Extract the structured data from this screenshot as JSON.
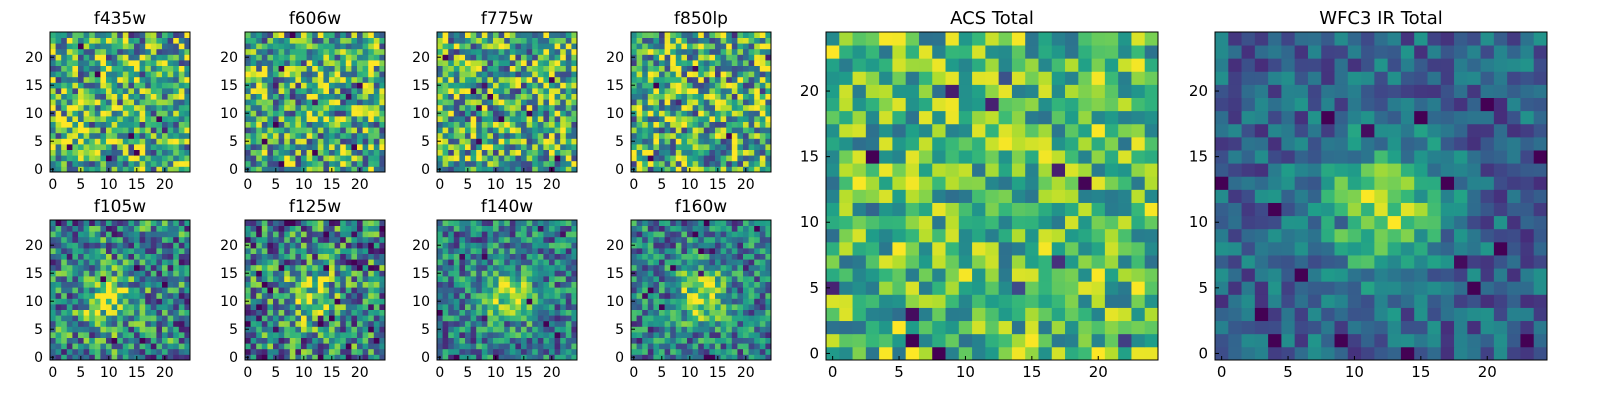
{
  "chart_data": [
    {
      "type": "heatmap",
      "title": "f435w",
      "xlim": [
        0,
        25
      ],
      "ylim": [
        0,
        25
      ],
      "xticks": [
        0,
        5,
        10,
        15,
        20
      ],
      "yticks": [
        0,
        5,
        10,
        15,
        20
      ],
      "grid_size": [
        25,
        25
      ],
      "colormap": "viridis",
      "grid": false,
      "pattern": {
        "kind": "noise",
        "center": null,
        "peak": 0,
        "noise": 0.45,
        "base": 0.62,
        "seed": 11
      }
    },
    {
      "type": "heatmap",
      "title": "f606w",
      "xlim": [
        0,
        25
      ],
      "ylim": [
        0,
        25
      ],
      "xticks": [
        0,
        5,
        10,
        15,
        20
      ],
      "yticks": [
        0,
        5,
        10,
        15,
        20
      ],
      "grid_size": [
        25,
        25
      ],
      "colormap": "viridis",
      "grid": false,
      "pattern": {
        "kind": "noise",
        "center": null,
        "peak": 0,
        "noise": 0.45,
        "base": 0.62,
        "seed": 23
      }
    },
    {
      "type": "heatmap",
      "title": "f775w",
      "xlim": [
        0,
        25
      ],
      "ylim": [
        0,
        25
      ],
      "xticks": [
        0,
        5,
        10,
        15,
        20
      ],
      "yticks": [
        0,
        5,
        10,
        15,
        20
      ],
      "grid_size": [
        25,
        25
      ],
      "colormap": "viridis",
      "grid": false,
      "pattern": {
        "kind": "noise",
        "center": null,
        "peak": 0,
        "noise": 0.45,
        "base": 0.62,
        "seed": 37
      }
    },
    {
      "type": "heatmap",
      "title": "f850lp",
      "xlim": [
        0,
        25
      ],
      "ylim": [
        0,
        25
      ],
      "xticks": [
        0,
        5,
        10,
        15,
        20
      ],
      "yticks": [
        0,
        5,
        10,
        15,
        20
      ],
      "grid_size": [
        25,
        25
      ],
      "colormap": "viridis",
      "grid": false,
      "pattern": {
        "kind": "noise",
        "center": null,
        "peak": 0,
        "noise": 0.45,
        "base": 0.62,
        "seed": 41
      }
    },
    {
      "type": "heatmap",
      "title": "f105w",
      "xlim": [
        0,
        25
      ],
      "ylim": [
        0,
        25
      ],
      "xticks": [
        0,
        5,
        10,
        15,
        20
      ],
      "yticks": [
        0,
        5,
        10,
        15,
        20
      ],
      "grid_size": [
        25,
        25
      ],
      "colormap": "viridis",
      "grid": false,
      "pattern": {
        "kind": "source",
        "center": [
          10,
          10
        ],
        "peak": 0.45,
        "noise": 0.4,
        "base": 0.45,
        "seed": 53
      }
    },
    {
      "type": "heatmap",
      "title": "f125w",
      "xlim": [
        0,
        25
      ],
      "ylim": [
        0,
        25
      ],
      "xticks": [
        0,
        5,
        10,
        15,
        20
      ],
      "yticks": [
        0,
        5,
        10,
        15,
        20
      ],
      "grid_size": [
        25,
        25
      ],
      "colormap": "viridis",
      "grid": false,
      "pattern": {
        "kind": "source",
        "center": [
          11,
          11
        ],
        "peak": 0.42,
        "noise": 0.42,
        "base": 0.45,
        "seed": 67
      }
    },
    {
      "type": "heatmap",
      "title": "f140w",
      "xlim": [
        0,
        25
      ],
      "ylim": [
        0,
        25
      ],
      "xticks": [
        0,
        5,
        10,
        15,
        20
      ],
      "yticks": [
        0,
        5,
        10,
        15,
        20
      ],
      "grid_size": [
        25,
        25
      ],
      "colormap": "viridis",
      "grid": false,
      "pattern": {
        "kind": "source",
        "center": [
          12,
          11
        ],
        "peak": 0.5,
        "noise": 0.32,
        "base": 0.42,
        "seed": 79
      }
    },
    {
      "type": "heatmap",
      "title": "f160w",
      "xlim": [
        0,
        25
      ],
      "ylim": [
        0,
        25
      ],
      "xticks": [
        0,
        5,
        10,
        15,
        20
      ],
      "yticks": [
        0,
        5,
        10,
        15,
        20
      ],
      "grid_size": [
        25,
        25
      ],
      "colormap": "viridis",
      "grid": false,
      "pattern": {
        "kind": "source",
        "center": [
          12,
          11
        ],
        "peak": 0.5,
        "noise": 0.32,
        "base": 0.42,
        "seed": 97
      }
    },
    {
      "type": "heatmap",
      "title": "ACS Total",
      "xlim": [
        0,
        25
      ],
      "ylim": [
        0,
        25
      ],
      "xticks": [
        0,
        5,
        10,
        15,
        20
      ],
      "yticks": [
        0,
        5,
        10,
        15,
        20
      ],
      "grid_size": [
        25,
        25
      ],
      "colormap": "viridis",
      "grid": false,
      "pattern": {
        "kind": "noise",
        "center": null,
        "peak": 0,
        "noise": 0.32,
        "base": 0.68,
        "seed": 113
      }
    },
    {
      "type": "heatmap",
      "title": "WFC3 IR Total",
      "xlim": [
        0,
        25
      ],
      "ylim": [
        0,
        25
      ],
      "xticks": [
        0,
        5,
        10,
        15,
        20
      ],
      "yticks": [
        0,
        5,
        10,
        15,
        20
      ],
      "grid_size": [
        25,
        25
      ],
      "colormap": "viridis",
      "grid": false,
      "pattern": {
        "kind": "source",
        "center": [
          12,
          11
        ],
        "peak": 0.55,
        "noise": 0.2,
        "base": 0.32,
        "seed": 131
      }
    }
  ]
}
